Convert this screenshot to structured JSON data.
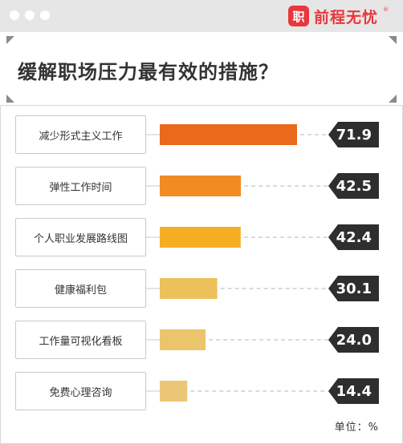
{
  "brand": {
    "mark": "职",
    "name": "前程无忧",
    "reg": "®"
  },
  "title": "缓解职场压力最有效的措施？",
  "unit_label": "单位：%",
  "chart_data": {
    "type": "bar",
    "orientation": "horizontal",
    "title": "缓解职场压力最有效的措施？",
    "unit": "%",
    "categories": [
      "减少形式主义工作",
      "弹性工作时间",
      "个人职业发展路线图",
      "健康福利包",
      "工作量可视化看板",
      "免费心理咨询"
    ],
    "values": [
      71.9,
      42.5,
      42.4,
      30.1,
      24.0,
      14.4
    ],
    "value_labels": [
      "71.9",
      "42.5",
      "42.4",
      "30.1",
      "24.0",
      "14.4"
    ],
    "colors": [
      "#ea6a1b",
      "#f18b22",
      "#f5ae24",
      "#ecc15a",
      "#ecc46c",
      "#ebc674"
    ],
    "xlim": [
      0,
      100
    ],
    "grid": false,
    "legend": "none"
  }
}
